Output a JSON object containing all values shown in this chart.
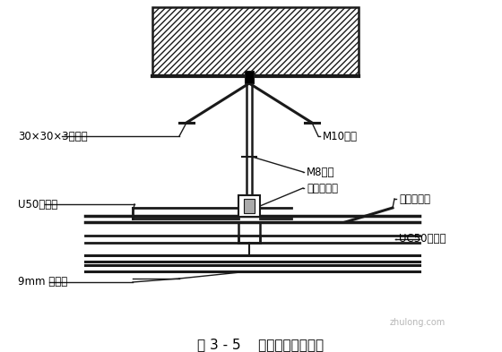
{
  "title": "图 3 - 5    石膏板吊顶剖面图",
  "bg_color": "#ffffff",
  "line_color": "#1a1a1a",
  "labels": {
    "angle_steel": "30×30×3角钢件",
    "bolt": "M10胀栓",
    "hanger": "M8吊筋",
    "main_rail_clip": "主龙骨吊件",
    "main_rail": "U50主龙骨",
    "sub_rail_clip": "次龙骨吊件",
    "sub_rail": "UC50次龙骨",
    "board": "9mm 石膏板"
  },
  "fig_width": 5.6,
  "fig_height": 3.93,
  "dpi": 100,
  "watermark": "zhulong.com"
}
